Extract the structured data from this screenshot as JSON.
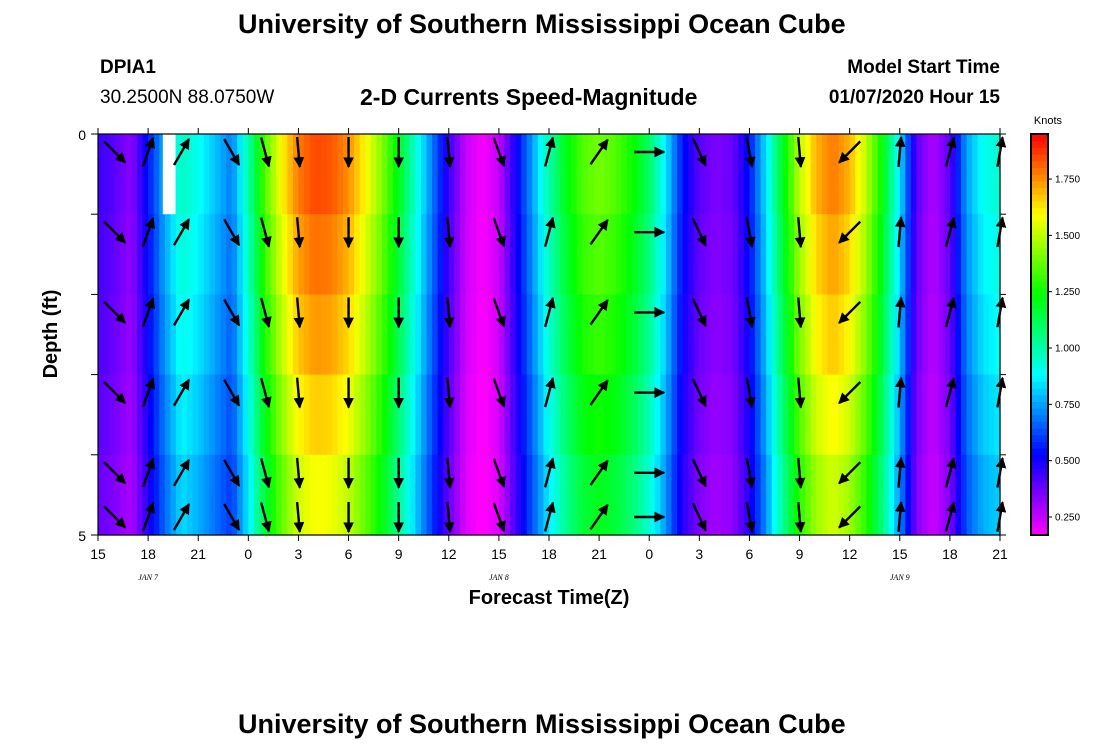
{
  "header": {
    "title_top": "University of Southern Mississippi Ocean Cube",
    "title_bottom": "University of Southern Mississippi Ocean Cube",
    "station_id": "DPIA1",
    "station_coords": "30.2500N 88.0750W",
    "model_start_label": "Model Start Time",
    "model_start_value": "01/07/2020 Hour 15"
  },
  "chart_data": {
    "type": "heatmap",
    "title": "2-D Currents Speed-Magnitude",
    "xlabel": "Forecast Time(Z)",
    "ylabel": "Depth (ft)",
    "x_tick_labels": [
      "15",
      "18",
      "21",
      "0",
      "3",
      "6",
      "9",
      "12",
      "15",
      "18",
      "21",
      "0",
      "3",
      "6",
      "9",
      "12",
      "15",
      "18",
      "21"
    ],
    "x_date_labels": [
      "JAN 7",
      "JAN 8",
      "JAN 9"
    ],
    "x_date_positions_hours": [
      3,
      24,
      48
    ],
    "x_range_hours": [
      0,
      54
    ],
    "y_tick_labels": [
      "0",
      "5"
    ],
    "ylim": [
      0,
      5
    ],
    "depth_rows": 5,
    "colorbar": {
      "units": "Knots",
      "min": 0.17,
      "max": 1.95,
      "ticks": [
        "0.250",
        "0.500",
        "0.750",
        "1.000",
        "1.250",
        "1.500",
        "1.750"
      ],
      "tick_values": [
        0.25,
        0.5,
        0.75,
        1.0,
        1.25,
        1.5,
        1.75
      ]
    },
    "speed_profile_hours": [
      0,
      1,
      2,
      3,
      4,
      5,
      6,
      7,
      8,
      9,
      10,
      11,
      12,
      13,
      14,
      15,
      16,
      17,
      18,
      19,
      20,
      21,
      22,
      23,
      24,
      25,
      26,
      27,
      28,
      29,
      30,
      31,
      32,
      33,
      34,
      35,
      36,
      37,
      38,
      39,
      40,
      41,
      42,
      43,
      44,
      45,
      46,
      47,
      48,
      49,
      50,
      51,
      52,
      53,
      54
    ],
    "speed_profile_knots": [
      0.45,
      0.4,
      0.33,
      0.55,
      0.78,
      0.97,
      0.9,
      0.8,
      0.7,
      1.0,
      1.35,
      1.6,
      1.78,
      1.85,
      1.83,
      1.75,
      1.6,
      1.42,
      1.2,
      0.95,
      0.7,
      0.45,
      0.25,
      0.18,
      0.25,
      0.5,
      0.75,
      1.0,
      1.2,
      1.35,
      1.4,
      1.35,
      1.25,
      1.1,
      0.85,
      0.55,
      0.4,
      0.35,
      0.38,
      0.55,
      0.85,
      1.2,
      1.5,
      1.7,
      1.78,
      1.7,
      1.5,
      1.22,
      0.85,
      0.4,
      0.28,
      0.4,
      0.75,
      0.9,
      0.95
    ],
    "depth_factors": [
      1.0,
      0.97,
      0.94,
      0.9,
      0.86
    ],
    "vector_hours": [
      1,
      3,
      5,
      8,
      10,
      12,
      15,
      18,
      21,
      24,
      27,
      30,
      33,
      36,
      39,
      42,
      45,
      48,
      51,
      54
    ],
    "vector_directions_deg": [
      135,
      20,
      30,
      150,
      165,
      175,
      180,
      180,
      175,
      160,
      15,
      35,
      90,
      155,
      170,
      175,
      225,
      5,
      15,
      10
    ],
    "no_data_cell": {
      "hour": 4,
      "row": 0
    }
  }
}
